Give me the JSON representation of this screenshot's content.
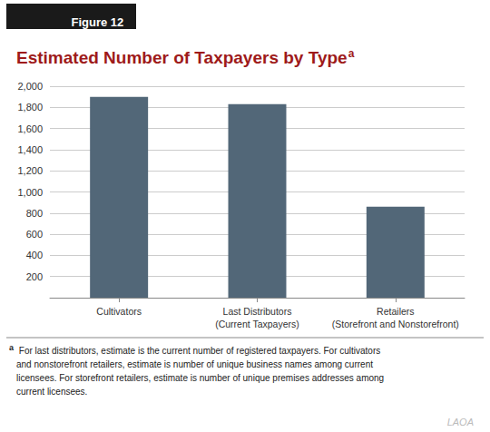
{
  "chart_data": {
    "type": "bar",
    "title": "Estimated Number of Taxpayers by Type",
    "title_superscript": "a",
    "figure_label": "Figure 12",
    "categories": [
      "Cultivators",
      "Last Distributors\n(Current Taxpayers)",
      "Retailers\n(Storefront and Nonstorefront)"
    ],
    "values": [
      1900,
      1830,
      860
    ],
    "color": "#526778",
    "ylim": [
      0,
      2000
    ],
    "yticks": [
      {
        "value": 0,
        "label": ""
      },
      200,
      400,
      600,
      800,
      {
        "value": 1000,
        "label": "1,000"
      },
      {
        "value": 1200,
        "label": "1,200"
      },
      {
        "value": 1400,
        "label": "1,400"
      },
      {
        "value": 1600,
        "label": "1,600"
      },
      {
        "value": 1800,
        "label": "1,800"
      },
      {
        "value": 2000,
        "label": "2,000"
      }
    ],
    "grid": true,
    "footnote_superscript": "a",
    "footnote": " For last distributors, estimate is the current number of registered taxpayers. For cultivators\nand nonstorefront retailers, estimate is number of unique business names among current\nlicensees. For storefront retailers, estimate is number of unique premises addresses among\ncurrent licensees.",
    "watermark": "LAOA"
  }
}
